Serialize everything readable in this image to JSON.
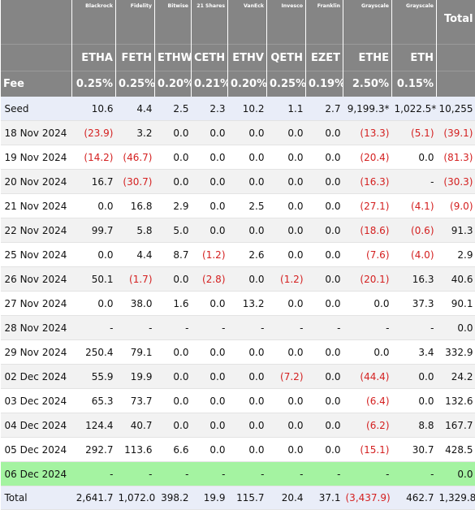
{
  "header": {
    "issuers": [
      "",
      "Blackrock",
      "Fidelity",
      "Bitwise",
      "21 Shares",
      "VanEck",
      "Invesco",
      "Franklin",
      "Grayscale",
      "Grayscale"
    ],
    "total_label": "Total",
    "tickers": [
      "",
      "ETHA",
      "FETH",
      "ETHW",
      "CETH",
      "ETHV",
      "QETH",
      "EZET",
      "ETHE",
      "ETH"
    ],
    "fee_label": "Fee",
    "fees": [
      "0.25%",
      "0.25%",
      "0.20%",
      "0.21%",
      "0.20%",
      "0.25%",
      "0.19%",
      "2.50%",
      "0.15%"
    ]
  },
  "rows": [
    {
      "label": "Seed",
      "cells": [
        "10.6",
        "4.4",
        "2.5",
        "2.3",
        "10.2",
        "1.1",
        "2.7",
        "9,199.3*",
        "1,022.5*",
        "10,255"
      ]
    },
    {
      "label": "18 Nov 2024",
      "cells": [
        "(23.9)",
        "3.2",
        "0.0",
        "0.0",
        "0.0",
        "0.0",
        "0.0",
        "(13.3)",
        "(5.1)",
        "(39.1)"
      ]
    },
    {
      "label": "19 Nov 2024",
      "cells": [
        "(14.2)",
        "(46.7)",
        "0.0",
        "0.0",
        "0.0",
        "0.0",
        "0.0",
        "(20.4)",
        "0.0",
        "(81.3)"
      ]
    },
    {
      "label": "20 Nov 2024",
      "cells": [
        "16.7",
        "(30.7)",
        "0.0",
        "0.0",
        "0.0",
        "0.0",
        "0.0",
        "(16.3)",
        "-",
        "(30.3)"
      ]
    },
    {
      "label": "21 Nov 2024",
      "cells": [
        "0.0",
        "16.8",
        "2.9",
        "0.0",
        "2.5",
        "0.0",
        "0.0",
        "(27.1)",
        "(4.1)",
        "(9.0)"
      ]
    },
    {
      "label": "22 Nov 2024",
      "cells": [
        "99.7",
        "5.8",
        "5.0",
        "0.0",
        "0.0",
        "0.0",
        "0.0",
        "(18.6)",
        "(0.6)",
        "91.3"
      ]
    },
    {
      "label": "25 Nov 2024",
      "cells": [
        "0.0",
        "4.4",
        "8.7",
        "(1.2)",
        "2.6",
        "0.0",
        "0.0",
        "(7.6)",
        "(4.0)",
        "2.9"
      ]
    },
    {
      "label": "26 Nov 2024",
      "cells": [
        "50.1",
        "(1.7)",
        "0.0",
        "(2.8)",
        "0.0",
        "(1.2)",
        "0.0",
        "(20.1)",
        "16.3",
        "40.6"
      ]
    },
    {
      "label": "27 Nov 2024",
      "cells": [
        "0.0",
        "38.0",
        "1.6",
        "0.0",
        "13.2",
        "0.0",
        "0.0",
        "0.0",
        "37.3",
        "90.1"
      ]
    },
    {
      "label": "28 Nov 2024",
      "cells": [
        "-",
        "-",
        "-",
        "-",
        "-",
        "-",
        "-",
        "-",
        "-",
        "0.0"
      ]
    },
    {
      "label": "29 Nov 2024",
      "cells": [
        "250.4",
        "79.1",
        "0.0",
        "0.0",
        "0.0",
        "0.0",
        "0.0",
        "0.0",
        "3.4",
        "332.9"
      ]
    },
    {
      "label": "02 Dec 2024",
      "cells": [
        "55.9",
        "19.9",
        "0.0",
        "0.0",
        "0.0",
        "(7.2)",
        "0.0",
        "(44.4)",
        "0.0",
        "24.2"
      ]
    },
    {
      "label": "03 Dec 2024",
      "cells": [
        "65.3",
        "73.7",
        "0.0",
        "0.0",
        "0.0",
        "0.0",
        "0.0",
        "(6.4)",
        "0.0",
        "132.6"
      ]
    },
    {
      "label": "04 Dec 2024",
      "cells": [
        "124.4",
        "40.7",
        "0.0",
        "0.0",
        "0.0",
        "0.0",
        "0.0",
        "(6.2)",
        "8.8",
        "167.7"
      ]
    },
    {
      "label": "05 Dec 2024",
      "cells": [
        "292.7",
        "113.6",
        "6.6",
        "0.0",
        "0.0",
        "0.0",
        "0.0",
        "(15.1)",
        "30.7",
        "428.5"
      ]
    },
    {
      "label": "06 Dec 2024",
      "cells": [
        "-",
        "-",
        "-",
        "-",
        "-",
        "-",
        "-",
        "-",
        "-",
        "0.0"
      ]
    },
    {
      "label": "Total",
      "cells": [
        "2,641.7",
        "1,072.0",
        "398.2",
        "19.9",
        "115.7",
        "20.4",
        "37.1",
        "(3,437.9)",
        "462.7",
        "1,329.8"
      ]
    }
  ],
  "colors": {
    "header_bg": "#858585",
    "negative": "#d42020",
    "seed_total_bg": "#e9edf8",
    "pending_row_bg": "#a4f3a1"
  }
}
